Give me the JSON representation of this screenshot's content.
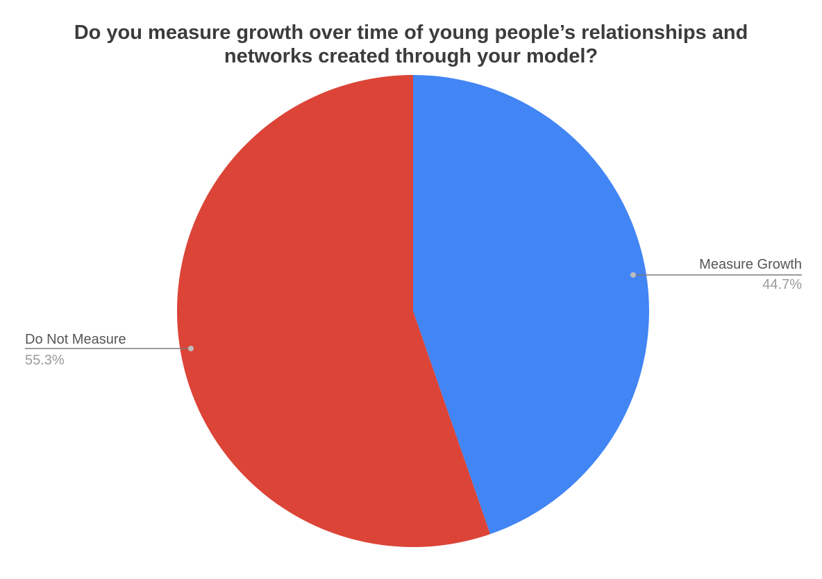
{
  "chart_data": {
    "type": "pie",
    "title_lines": [
      "Do you measure growth over time of young people’s relationships and",
      "networks created through your model?"
    ],
    "slices": [
      {
        "label": "Measure Growth",
        "value": 44.7,
        "value_label": "44.7%",
        "color": "#4285f4"
      },
      {
        "label": "Do Not Measure",
        "value": 55.3,
        "value_label": "55.3%",
        "color": "#db4437"
      }
    ],
    "start_angle_deg": 0,
    "direction": "clockwise",
    "legend": "labeled-slices"
  }
}
